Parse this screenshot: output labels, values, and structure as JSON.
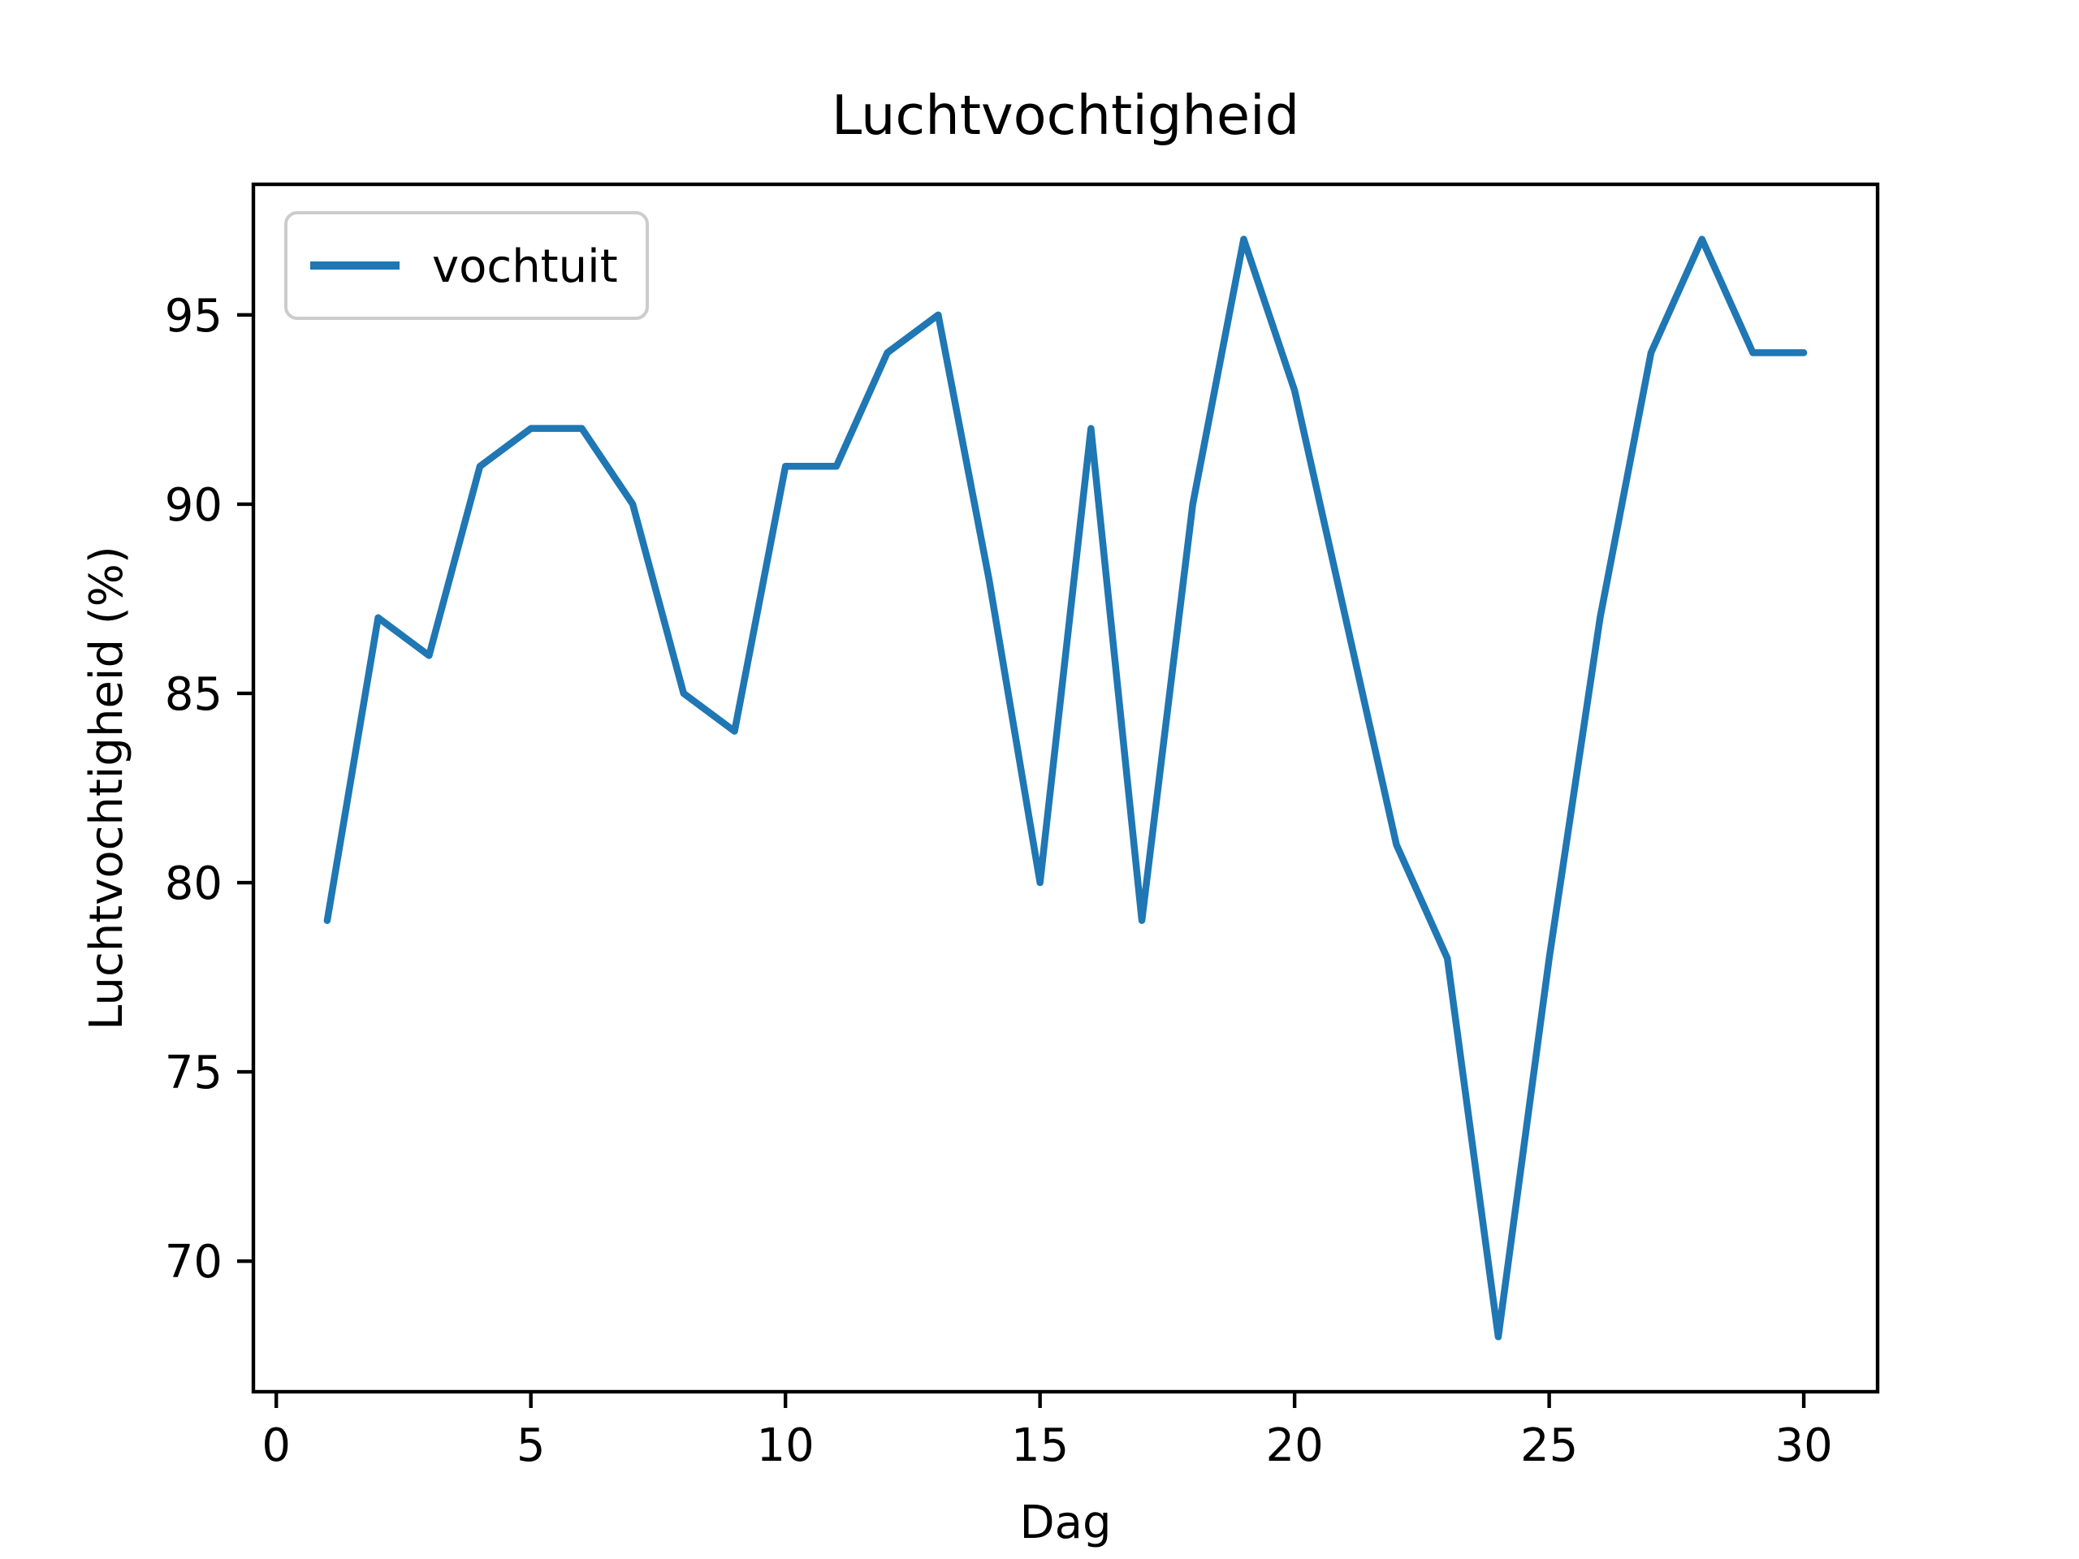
{
  "title": "Luchtvochtigheid",
  "colors": {
    "line": "#1f77b4",
    "text": "#000000",
    "spine": "#000000",
    "legend_border": "#cccccc",
    "background": "#ffffff"
  },
  "legend": {
    "label": "vochtuit",
    "position": "upper left"
  },
  "chart_data": {
    "type": "line",
    "title": "Luchtvochtigheid",
    "xlabel": "Dag",
    "ylabel": "Luchtvochtigheid (%)",
    "grid": false,
    "legend_position": "upper left",
    "x_ticks": [
      0,
      5,
      10,
      15,
      20,
      25,
      30
    ],
    "y_ticks": [
      70,
      75,
      80,
      85,
      90,
      95
    ],
    "xlim": [
      -0.45,
      31.45
    ],
    "ylim": [
      66.55,
      98.45
    ],
    "series": [
      {
        "name": "vochtuit",
        "color": "#1f77b4",
        "x": [
          1,
          2,
          3,
          4,
          5,
          6,
          7,
          8,
          9,
          10,
          11,
          12,
          13,
          14,
          15,
          16,
          17,
          18,
          19,
          20,
          21,
          22,
          23,
          24,
          25,
          26,
          27,
          28,
          29,
          30
        ],
        "values": [
          79,
          87,
          86,
          91,
          92,
          92,
          90,
          85,
          84,
          91,
          91,
          94,
          95,
          88,
          80,
          92,
          79,
          90,
          97,
          93,
          87,
          81,
          78,
          68,
          78,
          87,
          94,
          97,
          94,
          94
        ]
      }
    ]
  }
}
